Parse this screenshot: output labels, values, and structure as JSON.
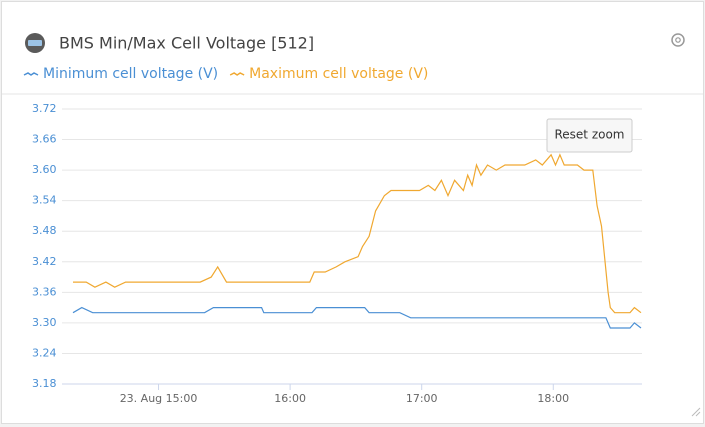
{
  "chart_data": {
    "type": "line",
    "title": "BMS Min/Max Cell Voltage [512]",
    "button": "Reset zoom",
    "xlim": [
      "14:21",
      "18:40"
    ],
    "xticks": [
      {
        "value": "15:00",
        "label": "23. Aug 15:00"
      },
      "16:00",
      "17:00",
      "18:00"
    ],
    "ylim": [
      3.18,
      3.72
    ],
    "yticks": [
      3.18,
      3.24,
      {
        "value": 3.3,
        "label": "3.30"
      },
      3.36,
      3.42,
      3.48,
      3.54,
      {
        "value": 3.6,
        "label": "3.60"
      },
      3.66,
      3.72
    ],
    "grid": true,
    "series": [
      {
        "name": "Minimum cell voltage (V)",
        "color": "#4a8fd4",
        "x": [
          "14:21",
          "14:25",
          "14:30",
          "15:21",
          "15:25",
          "15:47",
          "15:48",
          "16:10",
          "16:12",
          "16:34",
          "16:36",
          "16:50",
          "16:55",
          "18:24",
          "18:26",
          "18:35",
          "18:37",
          "18:40"
        ],
        "values": [
          3.32,
          3.33,
          3.32,
          3.32,
          3.33,
          3.33,
          3.32,
          3.32,
          3.33,
          3.33,
          3.32,
          3.32,
          3.31,
          3.31,
          3.29,
          3.29,
          3.3,
          3.29
        ]
      },
      {
        "name": "Maximum cell voltage (V)",
        "color": "#f0a830",
        "x": [
          "14:21",
          "14:27",
          "14:31",
          "14:36",
          "14:40",
          "14:45",
          "15:19",
          "15:24",
          "15:27",
          "15:31",
          "16:09",
          "16:11",
          "16:16",
          "16:21",
          "16:25",
          "16:31",
          "16:33",
          "16:36",
          "16:39",
          "16:43",
          "16:46",
          "16:59",
          "17:03",
          "17:06",
          "17:09",
          "17:12",
          "17:15",
          "17:19",
          "17:21",
          "17:23",
          "17:25",
          "17:27",
          "17:30",
          "17:34",
          "17:38",
          "17:41",
          "17:47",
          "17:52",
          "17:55",
          "17:59",
          "18:01",
          "18:03",
          "18:05",
          "18:11",
          "18:14",
          "18:18",
          "18:20",
          "18:22",
          "18:25",
          "18:26",
          "18:28",
          "18:35",
          "18:37",
          "18:40"
        ],
        "values": [
          3.38,
          3.38,
          3.37,
          3.38,
          3.37,
          3.38,
          3.38,
          3.39,
          3.41,
          3.38,
          3.38,
          3.4,
          3.4,
          3.41,
          3.42,
          3.43,
          3.45,
          3.47,
          3.52,
          3.55,
          3.56,
          3.56,
          3.57,
          3.56,
          3.58,
          3.55,
          3.58,
          3.56,
          3.59,
          3.57,
          3.61,
          3.59,
          3.61,
          3.6,
          3.61,
          3.61,
          3.61,
          3.62,
          3.61,
          3.63,
          3.61,
          3.63,
          3.61,
          3.61,
          3.6,
          3.6,
          3.53,
          3.49,
          3.36,
          3.33,
          3.32,
          3.32,
          3.33,
          3.32
        ]
      }
    ]
  }
}
